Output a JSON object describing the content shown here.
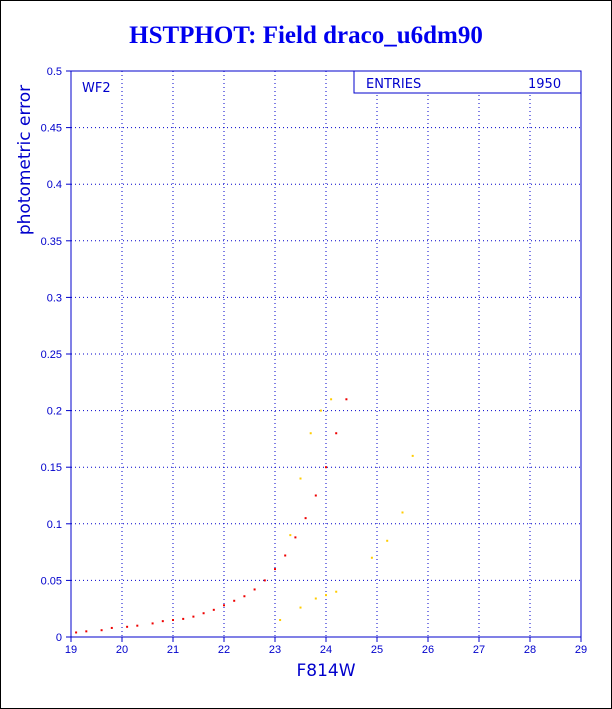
{
  "title": "HSTPHOT: Field draco_u6dm90",
  "chart_data": {
    "type": "scatter",
    "title": "HSTPHOT: Field draco_u6dm90",
    "xlabel": "F814W",
    "ylabel": "photometric error",
    "xlim": [
      19,
      29
    ],
    "ylim": [
      0,
      0.5
    ],
    "xticks": [
      "19",
      "20",
      "21",
      "22",
      "23",
      "24",
      "25",
      "26",
      "27",
      "28",
      "29"
    ],
    "yticks": [
      "0",
      "0.05",
      "0.1",
      "0.15",
      "0.2",
      "0.25",
      "0.3",
      "0.35",
      "0.4",
      "0.45",
      "0.5"
    ],
    "grid": true,
    "panel_label": "WF2",
    "stats_label": "ENTRIES",
    "stats_value": "1950",
    "colors": {
      "axis": "#0000cc",
      "grid": "#0000cc",
      "title": "#0000ee",
      "main_points": "#ee0000",
      "secondary_points": "#ffcc00"
    },
    "series": [
      {
        "color": "#ee0000",
        "points": [
          [
            19.1,
            0.004
          ],
          [
            19.3,
            0.005
          ],
          [
            19.6,
            0.006
          ],
          [
            19.8,
            0.008
          ],
          [
            20.1,
            0.009
          ],
          [
            20.3,
            0.01
          ],
          [
            20.6,
            0.012
          ],
          [
            20.8,
            0.014
          ],
          [
            21.0,
            0.015
          ],
          [
            21.2,
            0.016
          ],
          [
            21.4,
            0.018
          ],
          [
            21.6,
            0.021
          ],
          [
            21.8,
            0.024
          ],
          [
            22.0,
            0.028
          ],
          [
            22.2,
            0.032
          ],
          [
            22.4,
            0.036
          ],
          [
            22.6,
            0.042
          ],
          [
            22.8,
            0.05
          ],
          [
            23.0,
            0.06
          ],
          [
            23.2,
            0.072
          ],
          [
            23.4,
            0.088
          ],
          [
            23.6,
            0.105
          ],
          [
            23.8,
            0.125
          ],
          [
            24.0,
            0.15
          ],
          [
            24.2,
            0.18
          ],
          [
            24.4,
            0.21
          ]
        ]
      },
      {
        "color": "#ffcc00",
        "points": [
          [
            23.1,
            0.015
          ],
          [
            23.5,
            0.026
          ],
          [
            23.8,
            0.034
          ],
          [
            24.0,
            0.037
          ],
          [
            24.2,
            0.04
          ],
          [
            24.9,
            0.07
          ],
          [
            25.2,
            0.085
          ],
          [
            25.5,
            0.11
          ],
          [
            25.7,
            0.16
          ],
          [
            23.3,
            0.09
          ],
          [
            23.5,
            0.14
          ],
          [
            23.7,
            0.18
          ],
          [
            23.9,
            0.2
          ],
          [
            24.1,
            0.21
          ]
        ]
      }
    ]
  }
}
